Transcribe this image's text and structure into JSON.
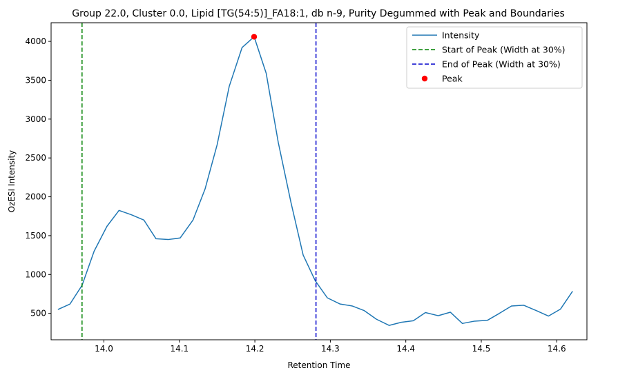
{
  "chart_data": {
    "type": "line",
    "title": "Group 22.0, Cluster 0.0, Lipid [TG(54:5)]_FA18:1, db n-9, Purity Degummed with Peak and Boundaries",
    "xlabel": "Retention Time",
    "ylabel": "OzESI Intensity",
    "xlim": [
      13.93,
      14.64
    ],
    "ylim": [
      160,
      4240
    ],
    "x_ticks": [
      14.0,
      14.1,
      14.2,
      14.3,
      14.4,
      14.5,
      14.6
    ],
    "x_tick_labels": [
      "14.0",
      "14.1",
      "14.2",
      "14.3",
      "14.4",
      "14.5",
      "14.6"
    ],
    "y_ticks": [
      500,
      1000,
      1500,
      2000,
      2500,
      3000,
      3500,
      4000
    ],
    "y_tick_labels": [
      "500",
      "1000",
      "1500",
      "2000",
      "2500",
      "3000",
      "3500",
      "4000"
    ],
    "grid": false,
    "legend_position": "top-right",
    "series": [
      {
        "name": "Intensity",
        "style": "line",
        "color": "#1f77b4",
        "x": [
          13.939,
          13.955,
          13.971,
          13.987,
          14.004,
          14.02,
          14.036,
          14.053,
          14.069,
          14.085,
          14.101,
          14.118,
          14.134,
          14.15,
          14.166,
          14.183,
          14.199,
          14.215,
          14.231,
          14.248,
          14.264,
          14.28,
          14.296,
          14.313,
          14.329,
          14.345,
          14.361,
          14.378,
          14.394,
          14.41,
          14.426,
          14.443,
          14.459,
          14.475,
          14.491,
          14.508,
          14.524,
          14.54,
          14.556,
          14.573,
          14.589,
          14.605,
          14.621
        ],
        "values": [
          550,
          620,
          860,
          1300,
          1620,
          1825,
          1770,
          1700,
          1460,
          1450,
          1470,
          1700,
          2100,
          2670,
          3420,
          3920,
          4060,
          3590,
          2700,
          1920,
          1250,
          920,
          700,
          620,
          595,
          535,
          425,
          345,
          385,
          405,
          510,
          470,
          515,
          370,
          400,
          410,
          500,
          595,
          605,
          535,
          465,
          555,
          785
        ]
      },
      {
        "name": "Start of Peak (Width at 30%)",
        "style": "vline-dashed",
        "color": "#008000",
        "x": 13.971
      },
      {
        "name": "End of Peak (Width at 30%)",
        "style": "vline-dashed",
        "color": "#0000cc",
        "x": 14.281
      },
      {
        "name": "Peak",
        "style": "point",
        "color": "#ff0000",
        "x": 14.199,
        "y": 4060
      }
    ]
  }
}
